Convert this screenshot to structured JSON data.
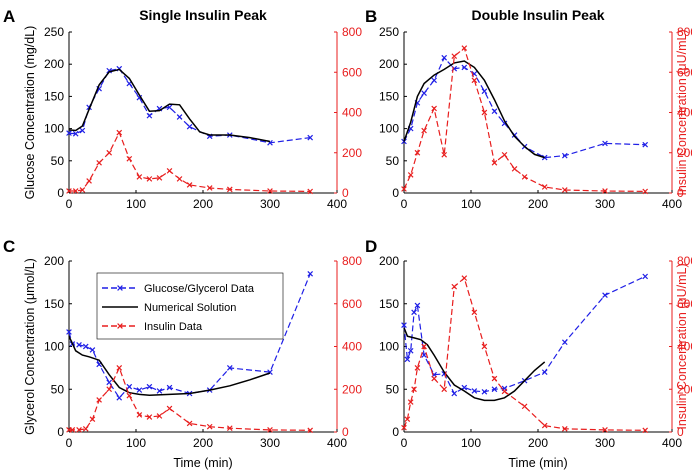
{
  "colors": {
    "glucose": "#1f1fe6",
    "insulin": "#e81e1e",
    "model": "#000000"
  },
  "legend": {
    "placement": "inside-top of panel C",
    "entries": [
      "Glucose/Glycerol Data",
      "Numerical Solution",
      "Insulin Data"
    ]
  },
  "chart_data": [
    {
      "letter": "A",
      "type": "line",
      "title": "Single Insulin Peak",
      "xlabel": "",
      "ylabel": "Glucose Concentration (mg/dL)",
      "y2label": "",
      "xlim": [
        0,
        400
      ],
      "ylim": [
        0,
        250
      ],
      "y2lim": [
        0,
        800
      ],
      "xticks": [
        "0",
        "100",
        "200",
        "300",
        "400"
      ],
      "yticks": [
        "0",
        "50",
        "100",
        "150",
        "200",
        "250"
      ],
      "y2ticks": [
        "0",
        "200",
        "400",
        "600",
        "800"
      ],
      "series": [
        {
          "name": "Glucose/Glycerol Data",
          "axis": "left",
          "style": "dashed-x",
          "color": "glucose",
          "x": [
            0,
            10,
            20,
            30,
            45,
            60,
            75,
            90,
            105,
            120,
            135,
            150,
            165,
            180,
            210,
            240,
            300,
            360
          ],
          "y": [
            93,
            92,
            97,
            133,
            162,
            190,
            193,
            170,
            148,
            120,
            131,
            133,
            118,
            103,
            88,
            90,
            78,
            86
          ]
        },
        {
          "name": "Numerical Solution",
          "axis": "left",
          "style": "solid",
          "color": "model",
          "x": [
            0,
            10,
            20,
            30,
            45,
            60,
            75,
            90,
            105,
            120,
            135,
            150,
            165,
            180,
            195,
            210,
            240,
            270,
            300
          ],
          "y": [
            98,
            97,
            104,
            130,
            168,
            188,
            192,
            178,
            152,
            127,
            128,
            138,
            137,
            115,
            95,
            90,
            90,
            86,
            80
          ]
        },
        {
          "name": "Insulin Data",
          "axis": "right",
          "style": "dashed-x",
          "color": "insulin",
          "x": [
            0,
            10,
            20,
            30,
            45,
            60,
            75,
            90,
            105,
            120,
            135,
            150,
            165,
            180,
            210,
            240,
            300,
            360
          ],
          "y": [
            10,
            10,
            15,
            60,
            150,
            200,
            300,
            170,
            80,
            70,
            75,
            110,
            70,
            40,
            25,
            18,
            10,
            8
          ]
        }
      ]
    },
    {
      "letter": "B",
      "type": "line",
      "title": "Double Insulin Peak",
      "xlabel": "",
      "ylabel": "",
      "y2label": "Insulin Concentration (μU/mL)",
      "xlim": [
        0,
        400
      ],
      "ylim": [
        0,
        250
      ],
      "y2lim": [
        0,
        800
      ],
      "xticks": [
        "0",
        "100",
        "200",
        "300",
        "400"
      ],
      "yticks": [
        "0",
        "50",
        "100",
        "150",
        "200",
        "250"
      ],
      "y2ticks": [
        "0",
        "200",
        "400",
        "600",
        "800"
      ],
      "series": [
        {
          "name": "Glucose/Glycerol Data",
          "axis": "left",
          "style": "dashed-x",
          "color": "glucose",
          "x": [
            0,
            10,
            20,
            30,
            45,
            60,
            75,
            90,
            105,
            120,
            135,
            150,
            165,
            180,
            210,
            240,
            300,
            360
          ],
          "y": [
            80,
            100,
            140,
            155,
            175,
            210,
            193,
            195,
            185,
            158,
            127,
            108,
            90,
            72,
            55,
            58,
            77,
            75
          ]
        },
        {
          "name": "Numerical Solution",
          "axis": "left",
          "style": "solid",
          "color": "model",
          "x": [
            0,
            10,
            20,
            30,
            45,
            60,
            75,
            90,
            105,
            120,
            135,
            150,
            165,
            180,
            195,
            210
          ],
          "y": [
            80,
            110,
            150,
            170,
            183,
            192,
            202,
            205,
            195,
            175,
            145,
            112,
            88,
            72,
            60,
            55
          ]
        },
        {
          "name": "Insulin Data",
          "axis": "right",
          "style": "dashed-x",
          "color": "insulin",
          "x": [
            0,
            10,
            20,
            30,
            45,
            60,
            75,
            90,
            105,
            120,
            135,
            150,
            165,
            180,
            210,
            240,
            300,
            360
          ],
          "y": [
            20,
            90,
            200,
            310,
            420,
            190,
            680,
            720,
            560,
            400,
            150,
            190,
            120,
            80,
            30,
            15,
            10,
            8
          ]
        }
      ]
    },
    {
      "letter": "C",
      "type": "line",
      "title": "",
      "xlabel": "Time (min)",
      "ylabel": "Glycerol Concentration (μmol/L)",
      "y2label": "",
      "xlim": [
        0,
        400
      ],
      "ylim": [
        0,
        200
      ],
      "y2lim": [
        0,
        800
      ],
      "xticks": [
        "0",
        "100",
        "200",
        "300",
        "400"
      ],
      "yticks": [
        "0",
        "50",
        "100",
        "150",
        "200"
      ],
      "y2ticks": [
        "0",
        "200",
        "400",
        "600",
        "800"
      ],
      "series": [
        {
          "name": "Glucose/Glycerol Data",
          "axis": "left",
          "style": "dashed-x",
          "color": "glucose",
          "x": [
            0,
            5,
            15,
            25,
            35,
            45,
            60,
            75,
            90,
            105,
            120,
            135,
            150,
            180,
            210,
            240,
            300,
            360
          ],
          "y": [
            117,
            103,
            102,
            100,
            96,
            79,
            58,
            40,
            53,
            49,
            53,
            48,
            52,
            45,
            49,
            75,
            70,
            185
          ]
        },
        {
          "name": "Numerical Solution",
          "axis": "left",
          "style": "solid",
          "color": "model",
          "x": [
            0,
            10,
            20,
            30,
            45,
            60,
            75,
            90,
            105,
            120,
            150,
            180,
            210,
            240,
            270,
            300
          ],
          "y": [
            112,
            95,
            90,
            88,
            84,
            67,
            52,
            46,
            44,
            43,
            44,
            45,
            49,
            54,
            61,
            69
          ]
        },
        {
          "name": "Insulin Data",
          "axis": "right",
          "style": "dashed-x",
          "color": "insulin",
          "x": [
            0,
            5,
            15,
            25,
            35,
            45,
            60,
            75,
            90,
            105,
            120,
            135,
            150,
            180,
            210,
            240,
            300,
            360
          ],
          "y": [
            10,
            10,
            10,
            15,
            60,
            150,
            200,
            300,
            170,
            80,
            70,
            75,
            110,
            40,
            25,
            18,
            10,
            8
          ]
        }
      ]
    },
    {
      "letter": "D",
      "type": "line",
      "title": "",
      "xlabel": "Time (min)",
      "ylabel": "",
      "y2label": "Insulin Concentration (μU/mL)",
      "xlim": [
        0,
        400
      ],
      "ylim": [
        0,
        200
      ],
      "y2lim": [
        0,
        800
      ],
      "xticks": [
        "0",
        "100",
        "200",
        "300",
        "400"
      ],
      "yticks": [
        "0",
        "50",
        "100",
        "150",
        "200"
      ],
      "y2ticks": [
        "0",
        "200",
        "400",
        "600",
        "800"
      ],
      "series": [
        {
          "name": "Glucose/Glycerol Data",
          "axis": "left",
          "style": "dashed-x",
          "color": "glucose",
          "x": [
            0,
            5,
            10,
            15,
            20,
            30,
            45,
            60,
            75,
            90,
            105,
            120,
            135,
            150,
            180,
            210,
            240,
            300,
            360
          ],
          "y": [
            125,
            85,
            95,
            140,
            148,
            90,
            67,
            68,
            45,
            52,
            48,
            47,
            50,
            51,
            60,
            70,
            105,
            160,
            182
          ]
        },
        {
          "name": "Numerical Solution",
          "axis": "left",
          "style": "solid",
          "color": "model",
          "x": [
            0,
            5,
            15,
            25,
            35,
            45,
            60,
            75,
            90,
            105,
            120,
            135,
            150,
            165,
            180,
            195,
            210
          ],
          "y": [
            122,
            112,
            110,
            108,
            102,
            90,
            70,
            55,
            48,
            40,
            37,
            37,
            40,
            48,
            60,
            72,
            82
          ]
        },
        {
          "name": "Insulin Data",
          "axis": "right",
          "style": "dashed-x",
          "color": "insulin",
          "x": [
            0,
            5,
            10,
            15,
            20,
            30,
            45,
            60,
            75,
            90,
            105,
            120,
            135,
            150,
            180,
            210,
            240,
            300,
            360
          ],
          "y": [
            20,
            60,
            140,
            200,
            300,
            400,
            250,
            200,
            680,
            720,
            560,
            400,
            250,
            190,
            120,
            30,
            15,
            10,
            8
          ]
        }
      ]
    }
  ]
}
